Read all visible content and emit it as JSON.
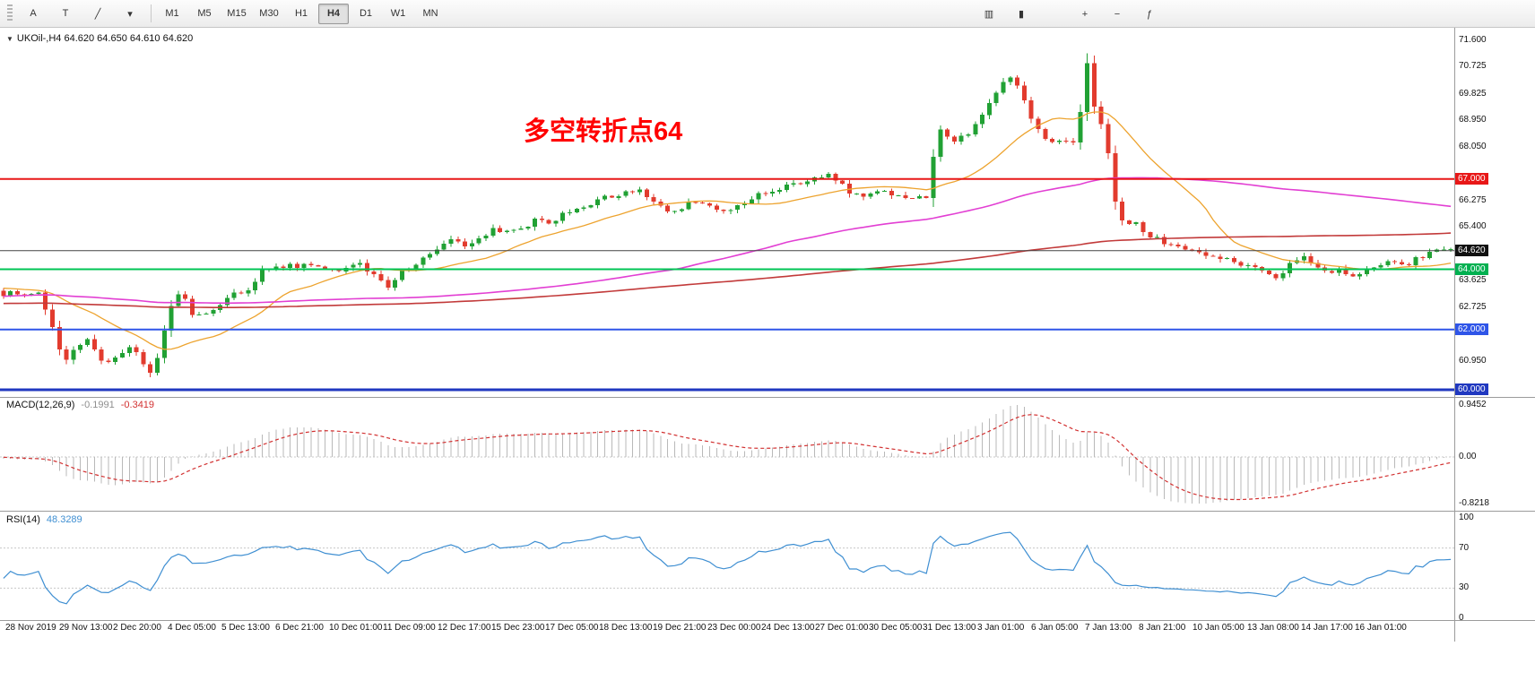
{
  "window": {
    "background": "#ffffff"
  },
  "toolbar": {
    "left_tools": [
      {
        "name": "cursor-tool-button",
        "glyph": "A"
      },
      {
        "name": "text-tool-button",
        "glyph": "T"
      },
      {
        "name": "draw-tool-button",
        "glyph": "╱"
      },
      {
        "name": "draw-caret-icon",
        "glyph": "▾"
      }
    ],
    "timeframes": [
      "M1",
      "M5",
      "M15",
      "M30",
      "H1",
      "H4",
      "D1",
      "W1",
      "MN"
    ],
    "selected_timeframe": "H4",
    "right_tools_a": [
      {
        "name": "bar-chart-button",
        "glyph": "▥"
      },
      {
        "name": "candlestick-chart-button",
        "glyph": "▮"
      }
    ],
    "right_tools_b": [
      {
        "name": "zoom-in-button",
        "glyph": "+"
      },
      {
        "name": "zoom-out-button",
        "glyph": "−"
      },
      {
        "name": "indicators-button",
        "glyph": "ƒ"
      }
    ]
  },
  "chart": {
    "symbol_label": "UKOil-,H4 64.620 64.650 64.610 64.620",
    "collapse_icon_glyph": "▼",
    "annotation": {
      "text": "多空转折点64",
      "color": "#ff0000"
    }
  },
  "chart_data": {
    "type": "candlestick",
    "symbol": "UKOil-",
    "timeframe": "H4",
    "ohlc": {
      "open": "64.620",
      "high": "64.650",
      "low": "64.610",
      "close": "64.620"
    },
    "seed": 20200116,
    "candle_count": 208,
    "visible_range": {
      "price_max": 71.6,
      "price_min": 60.0
    },
    "candle_colors": {
      "up": "#21a134",
      "down": "#e23b2e"
    },
    "price_path": [
      [
        0.0,
        63.1
      ],
      [
        0.018,
        63.25
      ],
      [
        0.03,
        63.15
      ],
      [
        0.038,
        62.0
      ],
      [
        0.046,
        60.8
      ],
      [
        0.056,
        61.55
      ],
      [
        0.064,
        61.7
      ],
      [
        0.072,
        60.85
      ],
      [
        0.082,
        61.15
      ],
      [
        0.092,
        61.45
      ],
      [
        0.1,
        60.95
      ],
      [
        0.106,
        60.6
      ],
      [
        0.112,
        61.3
      ],
      [
        0.118,
        62.6
      ],
      [
        0.126,
        63.3
      ],
      [
        0.134,
        62.45
      ],
      [
        0.148,
        62.7
      ],
      [
        0.16,
        63.05
      ],
      [
        0.172,
        63.35
      ],
      [
        0.182,
        63.95
      ],
      [
        0.192,
        64.2
      ],
      [
        0.205,
        64.05
      ],
      [
        0.22,
        64.15
      ],
      [
        0.235,
        64.0
      ],
      [
        0.25,
        64.15
      ],
      [
        0.262,
        63.75
      ],
      [
        0.268,
        63.4
      ],
      [
        0.276,
        63.85
      ],
      [
        0.286,
        64.15
      ],
      [
        0.296,
        64.55
      ],
      [
        0.306,
        64.85
      ],
      [
        0.314,
        65.05
      ],
      [
        0.322,
        64.8
      ],
      [
        0.332,
        65.1
      ],
      [
        0.342,
        65.3
      ],
      [
        0.352,
        65.2
      ],
      [
        0.362,
        65.45
      ],
      [
        0.372,
        65.65
      ],
      [
        0.382,
        65.55
      ],
      [
        0.392,
        65.9
      ],
      [
        0.402,
        66.1
      ],
      [
        0.412,
        66.25
      ],
      [
        0.422,
        66.4
      ],
      [
        0.432,
        66.55
      ],
      [
        0.44,
        66.65
      ],
      [
        0.448,
        66.4
      ],
      [
        0.456,
        66.2
      ],
      [
        0.463,
        65.95
      ],
      [
        0.472,
        66.1
      ],
      [
        0.482,
        66.3
      ],
      [
        0.49,
        66.1
      ],
      [
        0.497,
        65.85
      ],
      [
        0.506,
        66.0
      ],
      [
        0.516,
        66.3
      ],
      [
        0.526,
        66.5
      ],
      [
        0.536,
        66.7
      ],
      [
        0.546,
        66.85
      ],
      [
        0.556,
        66.95
      ],
      [
        0.566,
        67.05
      ],
      [
        0.572,
        67.25
      ],
      [
        0.579,
        66.85
      ],
      [
        0.587,
        66.55
      ],
      [
        0.596,
        66.4
      ],
      [
        0.606,
        66.6
      ],
      [
        0.616,
        66.5
      ],
      [
        0.626,
        66.35
      ],
      [
        0.634,
        66.5
      ],
      [
        0.642,
        66.4
      ],
      [
        0.646,
        68.95
      ],
      [
        0.652,
        68.35
      ],
      [
        0.66,
        68.2
      ],
      [
        0.668,
        68.55
      ],
      [
        0.676,
        69.0
      ],
      [
        0.684,
        69.55
      ],
      [
        0.692,
        70.15
      ],
      [
        0.699,
        70.45
      ],
      [
        0.706,
        69.6
      ],
      [
        0.712,
        69.0
      ],
      [
        0.719,
        68.4
      ],
      [
        0.727,
        68.1
      ],
      [
        0.735,
        68.3
      ],
      [
        0.743,
        68.2
      ],
      [
        0.749,
        71.2
      ],
      [
        0.755,
        69.3
      ],
      [
        0.762,
        68.6
      ],
      [
        0.769,
        66.2
      ],
      [
        0.776,
        65.4
      ],
      [
        0.782,
        65.8
      ],
      [
        0.788,
        65.3
      ],
      [
        0.794,
        65.1
      ],
      [
        0.802,
        64.9
      ],
      [
        0.812,
        64.7
      ],
      [
        0.822,
        64.55
      ],
      [
        0.832,
        64.4
      ],
      [
        0.842,
        64.3
      ],
      [
        0.852,
        64.25
      ],
      [
        0.862,
        64.1
      ],
      [
        0.872,
        63.8
      ],
      [
        0.879,
        63.65
      ],
      [
        0.887,
        64.0
      ],
      [
        0.893,
        64.4
      ],
      [
        0.9,
        64.35
      ],
      [
        0.908,
        64.1
      ],
      [
        0.916,
        63.9
      ],
      [
        0.924,
        64.05
      ],
      [
        0.932,
        63.75
      ],
      [
        0.94,
        63.85
      ],
      [
        0.95,
        64.1
      ],
      [
        0.96,
        64.3
      ],
      [
        0.97,
        64.2
      ],
      [
        0.98,
        64.45
      ],
      [
        0.99,
        64.55
      ],
      [
        1.0,
        64.62
      ]
    ],
    "moving_averages": [
      {
        "name": "ma-fast-line",
        "period": 18,
        "color": "#eda32e",
        "width": 1.3
      },
      {
        "name": "ma-mid-line",
        "period": 90,
        "color": "#e23fd3",
        "width": 1.6
      },
      {
        "name": "ma-slow-line",
        "period": 200,
        "color": "#c23a3a",
        "width": 1.6
      }
    ],
    "horizontal_lines": [
      {
        "name": "resistance-line-67",
        "value": 67.0,
        "color": "#e81717",
        "width": 2
      },
      {
        "name": "support-line-64",
        "value": 64.0,
        "color": "#00c455",
        "width": 2
      },
      {
        "name": "support-line-62",
        "value": 62.0,
        "color": "#2f55e8",
        "width": 2
      },
      {
        "name": "support-line-60",
        "value": 60.0,
        "color": "#2038c0",
        "width": 3
      },
      {
        "name": "current-price-line",
        "value": 64.62,
        "color": "#444444",
        "width": 1
      }
    ],
    "price_ticks": [
      "71.600",
      "70.725",
      "69.825",
      "68.950",
      "68.050",
      "66.275",
      "65.400",
      "63.625",
      "62.725",
      "60.950"
    ],
    "price_badges": [
      {
        "label": "67.000",
        "value": 67.0,
        "bg": "#e81717"
      },
      {
        "label": "64.620",
        "value": 64.62,
        "bg": "#101010"
      },
      {
        "label": "64.000",
        "value": 64.0,
        "bg": "#00b050"
      },
      {
        "label": "62.000",
        "value": 62.0,
        "bg": "#2f55e8"
      },
      {
        "label": "60.000",
        "value": 60.0,
        "bg": "#2038c0"
      }
    ],
    "macd": {
      "label": "MACD(12,26,9)",
      "main_value": "-0.1991",
      "signal_value": "-0.3419",
      "fast": 12,
      "slow": 26,
      "signal_period": 9,
      "histogram_color": "#b9b9b9",
      "signal_color": "#d23131",
      "axis": [
        "0.9452",
        "0.00",
        "-0.8218"
      ]
    },
    "rsi": {
      "label": "RSI(14)",
      "value": "48.3289",
      "period": 14,
      "color": "#3f8fd2",
      "levels": [
        30,
        70
      ],
      "axis": [
        "100",
        "70",
        "30",
        "0"
      ]
    },
    "time_labels": [
      "28 Nov 2019",
      "29 Nov 13:00",
      "2 Dec 20:00",
      "4 Dec 05:00",
      "5 Dec 13:00",
      "6 Dec 21:00",
      "10 Dec 01:00",
      "11 Dec 09:00",
      "12 Dec 17:00",
      "15 Dec 23:00",
      "17 Dec 05:00",
      "18 Dec 13:00",
      "19 Dec 21:00",
      "23 Dec 00:00",
      "24 Dec 13:00",
      "27 Dec 01:00",
      "30 Dec 05:00",
      "31 Dec 13:00",
      "3 Jan 01:00",
      "6 Jan 05:00",
      "7 Jan 13:00",
      "8 Jan 21:00",
      "10 Jan 05:00",
      "13 Jan 08:00",
      "14 Jan 17:00",
      "16 Jan 01:00"
    ]
  }
}
